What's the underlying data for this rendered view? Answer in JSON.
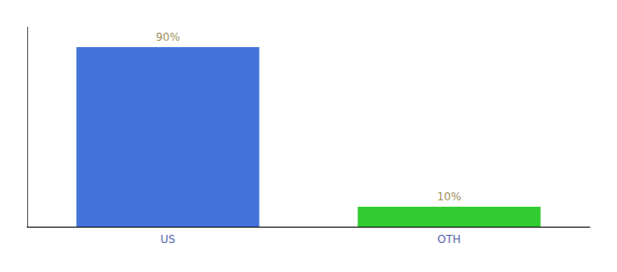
{
  "chart_data": {
    "type": "bar",
    "categories": [
      "US",
      "OTH"
    ],
    "values": [
      90,
      10
    ],
    "value_labels": [
      "90%",
      "10%"
    ],
    "colors": [
      "#4472db",
      "#33cc33"
    ],
    "ylim": [
      0,
      100
    ],
    "data_labels": true,
    "tick_labels": "x",
    "grid": false
  }
}
